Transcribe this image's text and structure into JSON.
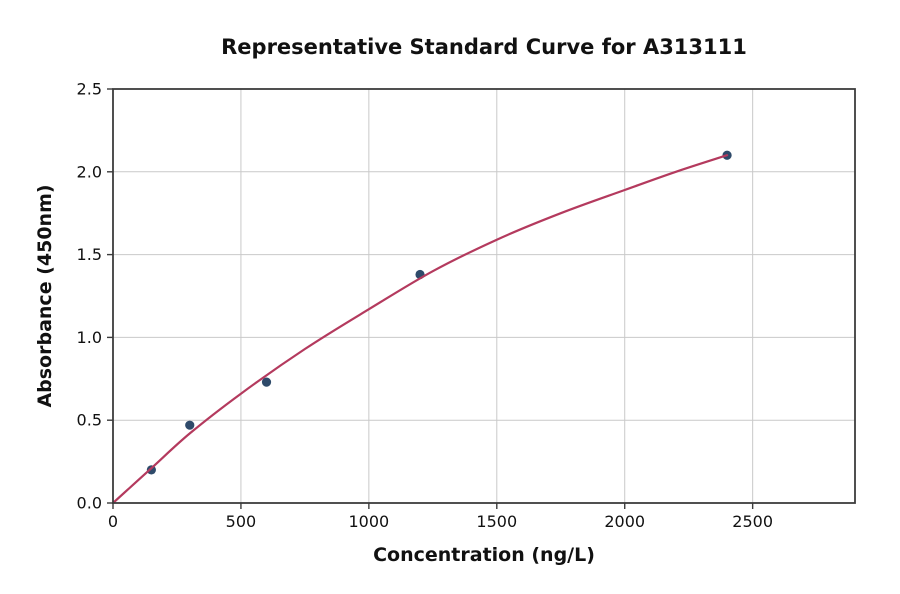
{
  "figure": {
    "background": "#ffffff",
    "text_color": "#111111"
  },
  "chart_data": {
    "type": "scatter",
    "title": "Representative Standard Curve for A313111",
    "xlabel": "Concentration (ng/L)",
    "ylabel": "Absorbance (450nm)",
    "xlim": [
      0,
      2900
    ],
    "ylim": [
      0,
      2.5
    ],
    "grid": true,
    "legend_position": "none",
    "xticks": {
      "values": [
        0,
        500,
        1000,
        1500,
        2000,
        2500
      ],
      "labels": [
        "0",
        "500",
        "1000",
        "1500",
        "2000",
        "2500"
      ]
    },
    "yticks": {
      "values": [
        0,
        0.5,
        1.0,
        1.5,
        2.0,
        2.5
      ],
      "labels": [
        "0.0",
        "0.5",
        "1.0",
        "1.5",
        "2.0",
        "2.5"
      ]
    },
    "series": [
      {
        "name": "standard-points",
        "kind": "scatter",
        "color": "#2e4a6a",
        "marker_radius": 4.6,
        "points": [
          [
            150,
            0.2
          ],
          [
            300,
            0.47
          ],
          [
            600,
            0.73
          ],
          [
            1200,
            1.38
          ],
          [
            2400,
            2.1
          ]
        ]
      },
      {
        "name": "fitted-curve",
        "kind": "line",
        "color": "#b43a5e",
        "line_width": 2.2,
        "points": [
          [
            0,
            0
          ],
          [
            150,
            0.21
          ],
          [
            300,
            0.42
          ],
          [
            500,
            0.66
          ],
          [
            750,
            0.93
          ],
          [
            1000,
            1.17
          ],
          [
            1250,
            1.4
          ],
          [
            1500,
            1.59
          ],
          [
            1750,
            1.75
          ],
          [
            2000,
            1.89
          ],
          [
            2200,
            2.0
          ],
          [
            2400,
            2.1
          ]
        ]
      }
    ],
    "style": {
      "grid_color": "#c9c9c9",
      "spine_color": "#3c3c3c",
      "tick_color": "#3c3c3c",
      "tick_label_color": "#111111"
    }
  }
}
